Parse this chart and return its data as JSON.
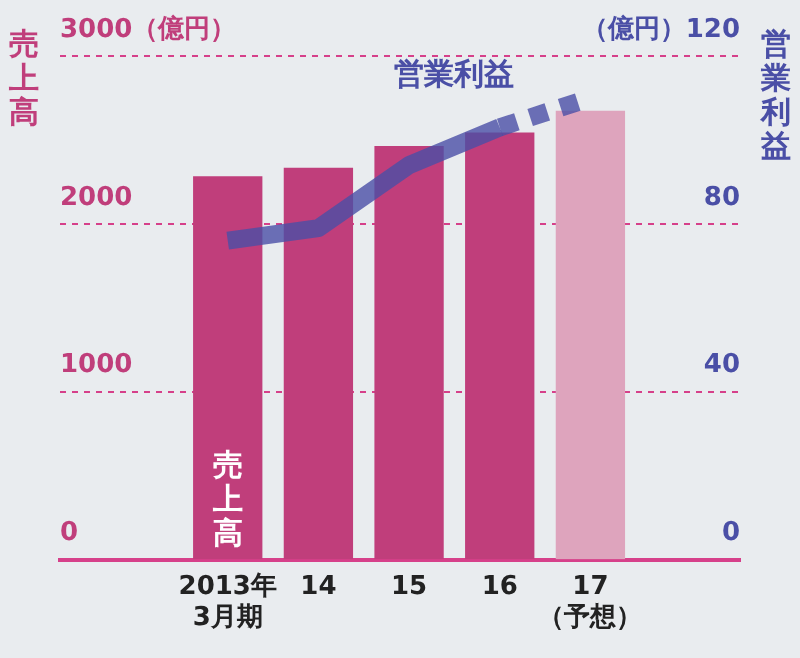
{
  "chart_data": {
    "type": "bar",
    "ylabel": "売上高",
    "y2label": "営業利益",
    "categories": [
      "2013年\n3月期",
      "14",
      "15",
      "16",
      "17\n（予想）"
    ],
    "series": [
      {
        "name": "売上高",
        "colors": [
          "#c03e7b",
          "#c03e7b",
          "#c03e7b",
          "#c03e7b",
          "#dea4bd"
        ],
        "values": [
          2280,
          2330,
          2460,
          2540,
          2670
        ]
      },
      {
        "name": "営業利益",
        "type": "line",
        "axis": "y2",
        "color": "#4a4fa6",
        "line_style": "solid",
        "values": [
          76,
          79,
          94,
          103,
          null
        ]
      },
      {
        "type": "line",
        "axis": "y2",
        "color": "#4a4fa6",
        "line_style": "dashed",
        "values": [
          null,
          null,
          null,
          103,
          110
        ]
      }
    ],
    "ylim": [
      0,
      3000
    ],
    "yticks": [
      0,
      1000,
      2000,
      {
        "value": 3000,
        "label": "3000（億円）"
      }
    ],
    "y2lim": [
      0,
      120
    ],
    "y2ticks": [
      0,
      40,
      80,
      {
        "value": 120,
        "label": "（億円）120"
      }
    ],
    "grid": "y",
    "legend": false
  }
}
